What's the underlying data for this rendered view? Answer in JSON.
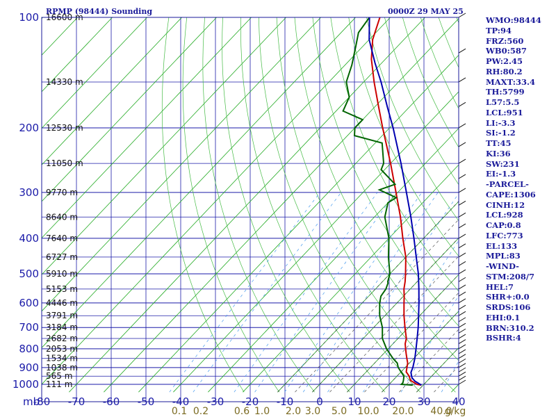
{
  "header": {
    "station": "RPMP (98444) Sounding",
    "time": "0000Z 29 MAY 25"
  },
  "parameters": [
    "WMO:98444",
    "TP:94",
    "FRZ:560",
    "WB0:587",
    "PW:2.45",
    "RH:80.2",
    "MAXT:33.4",
    "TH:5799",
    "L57:5.5",
    "LCL:951",
    "LI:-3.3",
    "SI:-1.2",
    "TT:45",
    "KI:36",
    "SW:231",
    "EI:-1.3",
    "-PARCEL-",
    "CAPE:1306",
    "CINH:12",
    "LCL:928",
    "CAP:0.8",
    "LFC:773",
    "EL:133",
    "MPL:83",
    "-WIND-",
    "STM:208/7",
    "HEL:7",
    "SHR+:0.0",
    "SRDS:106",
    "EHI:0.1",
    "BRN:310.2",
    "BSHR:4"
  ],
  "chart_data": {
    "type": "line",
    "subtype": "skew-t log-p",
    "x_axis": {
      "unit_label": "mb",
      "ticks": [
        "-80",
        "-70",
        "-60",
        "-50",
        "-40",
        "-30",
        "-20",
        "-10",
        "0",
        "10",
        "20",
        "30",
        "40"
      ],
      "range": [
        -80,
        40
      ]
    },
    "y_axis": {
      "scale": "log",
      "ticks": [
        "100",
        "200",
        "300",
        "400",
        "500",
        "600",
        "700",
        "800",
        "900",
        "1000"
      ],
      "range": [
        100,
        1050
      ]
    },
    "mixing_ratio_labels": [
      "0.1",
      "0.2",
      "0.6",
      "1.0",
      "2.0",
      "3.0",
      "5.0",
      "10.0",
      "20.0",
      "40.0",
      "g/kg"
    ],
    "height_labels": [
      {
        "p": 100,
        "text": "16600 m"
      },
      {
        "p": 150,
        "text": "14330 m"
      },
      {
        "p": 200,
        "text": "12530 m"
      },
      {
        "p": 250,
        "text": "11050 m"
      },
      {
        "p": 300,
        "text": "9770 m"
      },
      {
        "p": 350,
        "text": "8640 m"
      },
      {
        "p": 400,
        "text": "7640 m"
      },
      {
        "p": 450,
        "text": "6727 m"
      },
      {
        "p": 500,
        "text": "5910 m"
      },
      {
        "p": 550,
        "text": "5153 m"
      },
      {
        "p": 600,
        "text": "4446 m"
      },
      {
        "p": 650,
        "text": "3791 m"
      },
      {
        "p": 700,
        "text": "3184 m"
      },
      {
        "p": 750,
        "text": "2682 m"
      },
      {
        "p": 800,
        "text": "2053 m"
      },
      {
        "p": 850,
        "text": "1534 m"
      },
      {
        "p": 900,
        "text": "1038 m"
      },
      {
        "p": 950,
        "text": "565 m"
      },
      {
        "p": 1000,
        "text": "111 m"
      }
    ],
    "series": [
      {
        "role": "temperature",
        "color": "#cc0000",
        "points": [
          [
            1005,
            29.5
          ],
          [
            1000,
            28
          ],
          [
            975,
            25
          ],
          [
            950,
            23.5
          ],
          [
            925,
            21.5
          ],
          [
            900,
            20.5
          ],
          [
            875,
            19.5
          ],
          [
            850,
            18
          ],
          [
            825,
            16.5
          ],
          [
            800,
            15
          ],
          [
            775,
            13.5
          ],
          [
            750,
            12.4
          ],
          [
            700,
            9
          ],
          [
            650,
            5.5
          ],
          [
            600,
            2
          ],
          [
            575,
            0.2
          ],
          [
            550,
            -1.8
          ],
          [
            525,
            -3.5
          ],
          [
            500,
            -5.5
          ],
          [
            450,
            -10
          ],
          [
            400,
            -16
          ],
          [
            350,
            -22.5
          ],
          [
            300,
            -30.5
          ],
          [
            250,
            -40
          ],
          [
            200,
            -52
          ],
          [
            175,
            -59
          ],
          [
            150,
            -67
          ],
          [
            130,
            -74
          ],
          [
            115,
            -79
          ],
          [
            100,
            -83
          ]
        ]
      },
      {
        "role": "dewpoint",
        "color": "#006400",
        "points": [
          [
            1005,
            27
          ],
          [
            1000,
            23.5
          ],
          [
            990,
            23.5
          ],
          [
            975,
            23
          ],
          [
            950,
            22
          ],
          [
            925,
            20
          ],
          [
            900,
            18
          ],
          [
            875,
            16.5
          ],
          [
            850,
            14
          ],
          [
            800,
            9.5
          ],
          [
            750,
            5.5
          ],
          [
            700,
            2.5
          ],
          [
            650,
            -1.5
          ],
          [
            600,
            -5
          ],
          [
            575,
            -6.5
          ],
          [
            550,
            -7
          ],
          [
            540,
            -7.5
          ],
          [
            530,
            -8
          ],
          [
            525,
            -8.5
          ],
          [
            500,
            -10
          ],
          [
            450,
            -15
          ],
          [
            400,
            -20
          ],
          [
            350,
            -27
          ],
          [
            320,
            -30
          ],
          [
            310,
            -29
          ],
          [
            295,
            -36
          ],
          [
            285,
            -33
          ],
          [
            260,
            -41
          ],
          [
            250,
            -42
          ],
          [
            220,
            -48
          ],
          [
            210,
            -58
          ],
          [
            200,
            -60
          ],
          [
            190,
            -60
          ],
          [
            180,
            -68
          ],
          [
            165,
            -70
          ],
          [
            150,
            -75
          ],
          [
            135,
            -78
          ],
          [
            120,
            -82
          ],
          [
            110,
            -85
          ],
          [
            100,
            -86
          ]
        ]
      },
      {
        "role": "parcel",
        "color": "#0000b0",
        "points": [
          [
            1005,
            29.5
          ],
          [
            980,
            26.5
          ],
          [
            960,
            24.8
          ],
          [
            950,
            24.2
          ],
          [
            928,
            23
          ],
          [
            900,
            22.2
          ],
          [
            850,
            20.3
          ],
          [
            800,
            18
          ],
          [
            750,
            15.5
          ],
          [
            700,
            12.8
          ],
          [
            650,
            9.7
          ],
          [
            600,
            6.3
          ],
          [
            550,
            2.5
          ],
          [
            500,
            -1.8
          ],
          [
            450,
            -7
          ],
          [
            400,
            -12.8
          ],
          [
            350,
            -19.5
          ],
          [
            300,
            -27.5
          ],
          [
            250,
            -37
          ],
          [
            200,
            -49
          ],
          [
            175,
            -56.5
          ],
          [
            150,
            -65
          ],
          [
            133,
            -72
          ],
          [
            115,
            -80
          ],
          [
            100,
            -86
          ]
        ]
      }
    ]
  }
}
